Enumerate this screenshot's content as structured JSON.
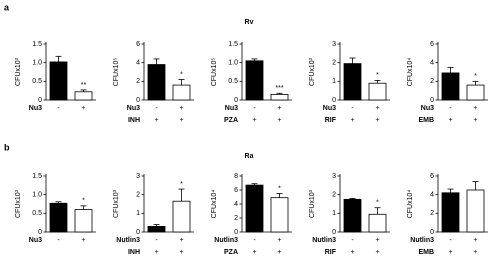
{
  "panels": [
    {
      "letter": "a",
      "title": "Rv"
    },
    {
      "letter": "b",
      "title": "Ra"
    }
  ],
  "chart_data": [
    {
      "type": "bar",
      "ylabel": "CFUx10³",
      "ylim": [
        0,
        1.5
      ],
      "yticks": [
        0,
        0.5,
        {
          "value": 1,
          "label": "1.0"
        },
        1.5
      ],
      "values": [
        1.02,
        0.22
      ],
      "errors": [
        0.15,
        0.05
      ],
      "colors": [
        "#000000",
        "#ffffff"
      ],
      "annotations": [
        {
          "index": 1,
          "text": "**"
        }
      ],
      "conditions": [
        {
          "name": "Nu3",
          "marks": [
            "-",
            "+"
          ]
        }
      ]
    },
    {
      "type": "bar",
      "ylabel": "CFUx10⁵",
      "ylim": [
        0,
        6
      ],
      "yticks": [
        0,
        2,
        4,
        6
      ],
      "values": [
        3.8,
        1.6
      ],
      "errors": [
        0.6,
        0.6
      ],
      "colors": [
        "#000000",
        "#ffffff"
      ],
      "annotations": [
        {
          "index": 1,
          "text": "*"
        }
      ],
      "conditions": [
        {
          "name": "Nu3",
          "marks": [
            "-",
            "+"
          ]
        },
        {
          "name": "INH",
          "marks": [
            "+",
            "+"
          ]
        }
      ]
    },
    {
      "type": "bar",
      "ylabel": "CFUx10⁵",
      "ylim": [
        0,
        1.5
      ],
      "yticks": [
        0,
        0.5,
        {
          "value": 1,
          "label": "1.0"
        },
        1.5
      ],
      "values": [
        1.05,
        0.15
      ],
      "errors": [
        0.05,
        0.03
      ],
      "colors": [
        "#000000",
        "#ffffff"
      ],
      "annotations": [
        {
          "index": 1,
          "text": "***"
        }
      ],
      "conditions": [
        {
          "name": "Nu3",
          "marks": [
            "-",
            "+"
          ]
        },
        {
          "name": "PZA",
          "marks": [
            "+",
            "+"
          ]
        }
      ]
    },
    {
      "type": "bar",
      "ylabel": "CFUx10³",
      "ylim": [
        0,
        3
      ],
      "yticks": [
        0,
        1,
        2,
        3
      ],
      "values": [
        1.95,
        0.9
      ],
      "errors": [
        0.3,
        0.15
      ],
      "colors": [
        "#000000",
        "#ffffff"
      ],
      "annotations": [
        {
          "index": 1,
          "text": "*"
        }
      ],
      "conditions": [
        {
          "name": "Nu3",
          "marks": [
            "-",
            "+"
          ]
        },
        {
          "name": "RIF",
          "marks": [
            "+",
            "+"
          ]
        }
      ]
    },
    {
      "type": "bar",
      "ylabel": "CFUx10⁴",
      "ylim": [
        0,
        6
      ],
      "yticks": [
        0,
        2,
        4,
        6
      ],
      "values": [
        2.9,
        1.6
      ],
      "errors": [
        0.6,
        0.4
      ],
      "colors": [
        "#000000",
        "#ffffff"
      ],
      "annotations": [
        {
          "index": 1,
          "text": "*"
        }
      ],
      "conditions": [
        {
          "name": "Nu3",
          "marks": [
            "-",
            "+"
          ]
        },
        {
          "name": "EMB",
          "marks": [
            "+",
            "+"
          ]
        }
      ]
    },
    {
      "type": "bar",
      "ylabel": "CFUx10³",
      "ylim": [
        0,
        1.5
      ],
      "yticks": [
        0,
        0.5,
        {
          "value": 1,
          "label": "1.0"
        },
        1.5
      ],
      "values": [
        0.77,
        0.6
      ],
      "errors": [
        0.04,
        0.1
      ],
      "colors": [
        "#000000",
        "#ffffff"
      ],
      "annotations": [
        {
          "index": 1,
          "text": "*"
        }
      ],
      "conditions": [
        {
          "name": "Nu3",
          "marks": [
            "-",
            "+"
          ]
        }
      ]
    },
    {
      "type": "bar",
      "ylabel": "CFUx10³",
      "ylim": [
        0,
        3
      ],
      "yticks": [
        0,
        1,
        2,
        3
      ],
      "values": [
        0.3,
        1.65
      ],
      "errors": [
        0.1,
        0.65
      ],
      "colors": [
        "#000000",
        "#ffffff"
      ],
      "annotations": [
        {
          "index": 1,
          "text": "*"
        }
      ],
      "conditions": [
        {
          "name": "Nutlin3",
          "marks": [
            "-",
            "+"
          ]
        },
        {
          "name": "INH",
          "marks": [
            "+",
            "+"
          ]
        }
      ]
    },
    {
      "type": "bar",
      "ylabel": "CFUx10⁴",
      "ylim": [
        0,
        8
      ],
      "yticks": [
        0,
        2,
        4,
        6,
        8
      ],
      "values": [
        6.7,
        4.9
      ],
      "errors": [
        0.2,
        0.6
      ],
      "colors": [
        "#000000",
        "#ffffff"
      ],
      "annotations": [
        {
          "index": 1,
          "text": "*"
        }
      ],
      "conditions": [
        {
          "name": "Nutlin3",
          "marks": [
            "-",
            "+"
          ]
        },
        {
          "name": "PZA",
          "marks": [
            "+",
            "+"
          ]
        }
      ]
    },
    {
      "type": "bar",
      "ylabel": "CFUx10³",
      "ylim": [
        0,
        3
      ],
      "yticks": [
        0,
        1,
        2,
        3
      ],
      "values": [
        1.75,
        0.95
      ],
      "errors": [
        0.05,
        0.35
      ],
      "colors": [
        "#000000",
        "#ffffff"
      ],
      "annotations": [
        {
          "index": 1,
          "text": "*"
        }
      ],
      "conditions": [
        {
          "name": "Nutlin3",
          "marks": [
            "-",
            "+"
          ]
        },
        {
          "name": "RIF",
          "marks": [
            "+",
            "+"
          ]
        }
      ]
    },
    {
      "type": "bar",
      "ylabel": "CFUx10⁴",
      "ylim": [
        0,
        6
      ],
      "yticks": [
        0,
        2,
        4,
        6
      ],
      "values": [
        4.2,
        4.5
      ],
      "errors": [
        0.4,
        0.9
      ],
      "colors": [
        "#000000",
        "#ffffff"
      ],
      "annotations": [],
      "conditions": [
        {
          "name": "Nutlin3",
          "marks": [
            "-",
            "+"
          ]
        },
        {
          "name": "EMB",
          "marks": [
            "+",
            "+"
          ]
        }
      ]
    }
  ]
}
